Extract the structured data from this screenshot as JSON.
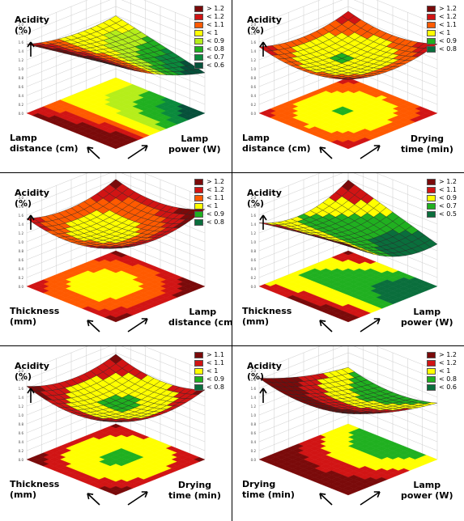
{
  "colors": {
    "darkred": "#7a0a0a",
    "red": "#d11414",
    "orange": "#ff5a00",
    "yellow": "#ffff00",
    "lime": "#b5ee1a",
    "green": "#20b020",
    "dark": "#0a6e3c",
    "darker": "#06503a"
  },
  "chart_data": [
    {
      "type": "surface",
      "ylabel": "Acidity\n(%)",
      "xlabel": "Lamp\ndistance (cm)",
      "zlabel": "Lamp\npower (W)",
      "zlim": [
        0,
        2
      ],
      "legend": [
        {
          "label": "> 1.2",
          "color": "#7a0a0a"
        },
        {
          "label": "< 1.2",
          "color": "#d11414"
        },
        {
          "label": "< 1.1",
          "color": "#ff5a00"
        },
        {
          "label": "< 1",
          "color": "#ffff00"
        },
        {
          "label": "< 0.9",
          "color": "#b5ee1a"
        },
        {
          "label": "< 0.8",
          "color": "#20b020"
        },
        {
          "label": "< 0.7",
          "color": "#0a8a3c"
        },
        {
          "label": "< 0.6",
          "color": "#06503a"
        }
      ]
    },
    {
      "type": "surface",
      "ylabel": "Acidity\n(%)",
      "xlabel": "Lamp\ndistance (cm)",
      "zlabel": "Drying\ntime (min)",
      "zlim": [
        0,
        2
      ],
      "legend": [
        {
          "label": "> 1.2",
          "color": "#7a0a0a"
        },
        {
          "label": "< 1.2",
          "color": "#d11414"
        },
        {
          "label": "< 1.1",
          "color": "#ff5a00"
        },
        {
          "label": "< 1",
          "color": "#ffff00"
        },
        {
          "label": "< 0.9",
          "color": "#20b020"
        },
        {
          "label": "< 0.8",
          "color": "#0a6e3c"
        }
      ]
    },
    {
      "type": "surface",
      "ylabel": "Acidity\n(%)",
      "xlabel": "Thickness\n(mm)",
      "zlabel": "Lamp\ndistance (cm)",
      "zlim": [
        0,
        2
      ],
      "legend": [
        {
          "label": "> 1.2",
          "color": "#7a0a0a"
        },
        {
          "label": "< 1.2",
          "color": "#d11414"
        },
        {
          "label": "< 1.1",
          "color": "#ff5a00"
        },
        {
          "label": "< 1",
          "color": "#ffff00"
        },
        {
          "label": "< 0.9",
          "color": "#20b020"
        },
        {
          "label": "< 0.8",
          "color": "#0a6e3c"
        }
      ]
    },
    {
      "type": "surface",
      "ylabel": "Acidity\n(%)",
      "xlabel": "Thickness\n(mm)",
      "zlabel": "Lamp\npower (W)",
      "zlim": [
        0,
        2
      ],
      "legend": [
        {
          "label": "> 1.2",
          "color": "#7a0a0a"
        },
        {
          "label": "< 1.1",
          "color": "#d11414"
        },
        {
          "label": "< 0.9",
          "color": "#ffff00"
        },
        {
          "label": "< 0.7",
          "color": "#20b020"
        },
        {
          "label": "< 0.5",
          "color": "#0a6e3c"
        }
      ]
    },
    {
      "type": "surface",
      "ylabel": "Acidity\n(%)",
      "xlabel": "Thickness\n(mm)",
      "zlabel": "Drying\ntime (min)",
      "zlim": [
        0,
        2
      ],
      "legend": [
        {
          "label": "> 1.1",
          "color": "#7a0a0a"
        },
        {
          "label": "< 1.1",
          "color": "#d11414"
        },
        {
          "label": "< 1",
          "color": "#ffff00"
        },
        {
          "label": "< 0.9",
          "color": "#20b020"
        },
        {
          "label": "< 0.8",
          "color": "#0a6e3c"
        }
      ]
    },
    {
      "type": "surface",
      "ylabel": "Acidity\n(%)",
      "xlabel": "Drying\ntime (min)",
      "zlabel": "Lamp\npower (W)",
      "zlim": [
        0,
        2
      ],
      "legend": [
        {
          "label": "> 1.2",
          "color": "#7a0a0a"
        },
        {
          "label": "< 1.2",
          "color": "#d11414"
        },
        {
          "label": "< 1",
          "color": "#ffff00"
        },
        {
          "label": "< 0.8",
          "color": "#20b020"
        },
        {
          "label": "< 0.6",
          "color": "#0a6e3c"
        }
      ]
    }
  ]
}
